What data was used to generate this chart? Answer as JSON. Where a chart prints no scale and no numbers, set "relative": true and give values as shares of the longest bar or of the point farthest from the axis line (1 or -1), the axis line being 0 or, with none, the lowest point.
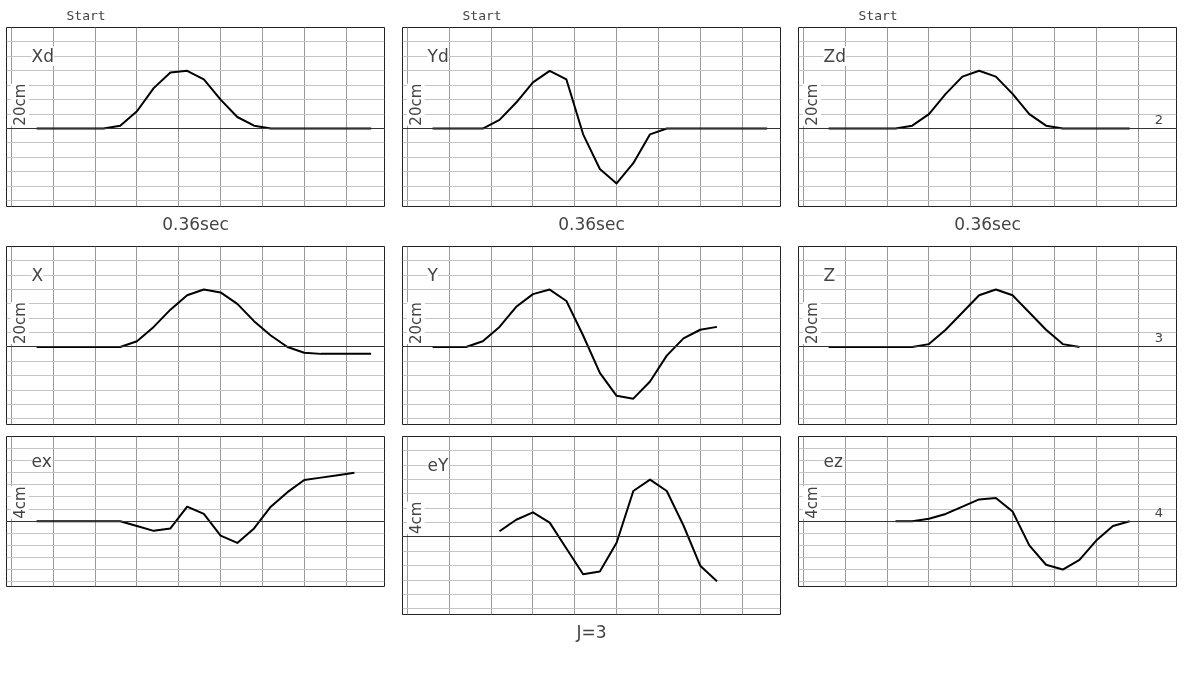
{
  "chart_data": [
    {
      "type": "line",
      "title": "Xd",
      "subtitle": "Start",
      "ylabel": "20cm",
      "xlabel": "0.36sec",
      "relative": true,
      "grid": true,
      "line_style": "solid",
      "categories": [
        null,
        null,
        null,
        null,
        null,
        null,
        null,
        null,
        null,
        null,
        null,
        null,
        null,
        null,
        null,
        null,
        null,
        null,
        null,
        null,
        null
      ],
      "series": [
        {
          "color": "#000000",
          "values": [
            0,
            0,
            0,
            0,
            0,
            0.05,
            0.3,
            0.7,
            0.97,
            1,
            0.85,
            0.5,
            0.2,
            0.05,
            0,
            0,
            0,
            0,
            0,
            0,
            0
          ]
        }
      ]
    },
    {
      "type": "line",
      "title": "Yd",
      "subtitle": "Start",
      "ylabel": "20cm",
      "xlabel": "0.36sec",
      "relative": true,
      "grid": true,
      "line_style": "solid",
      "categories": [
        null,
        null,
        null,
        null,
        null,
        null,
        null,
        null,
        null,
        null,
        null,
        null,
        null,
        null,
        null,
        null,
        null,
        null,
        null,
        null,
        null
      ],
      "series": [
        {
          "color": "#000000",
          "values": [
            0,
            0,
            0,
            0,
            0.15,
            0.45,
            0.8,
            1,
            0.85,
            -0.1,
            -0.7,
            -0.95,
            -0.6,
            -0.1,
            0,
            0,
            0,
            0,
            0,
            0,
            0
          ]
        }
      ]
    },
    {
      "type": "line",
      "title": "Zd",
      "subtitle": "Start",
      "ylabel": "20cm",
      "xlabel": "0.36sec",
      "annotations": [
        "2"
      ],
      "relative": true,
      "grid": true,
      "line_style": "solid",
      "categories": [
        null,
        null,
        null,
        null,
        null,
        null,
        null,
        null,
        null,
        null,
        null,
        null,
        null,
        null,
        null,
        null,
        null,
        null,
        null,
        null,
        null
      ],
      "series": [
        {
          "color": "#000000",
          "values": [
            0,
            0,
            0,
            0,
            0,
            0.05,
            0.25,
            0.6,
            0.9,
            1,
            0.9,
            0.6,
            0.25,
            0.05,
            0,
            0,
            0,
            0,
            0,
            null,
            null
          ]
        }
      ]
    },
    {
      "type": "line",
      "title": "X",
      "ylabel": "20cm",
      "relative": true,
      "grid": true,
      "line_style": "solid",
      "categories": [
        null,
        null,
        null,
        null,
        null,
        null,
        null,
        null,
        null,
        null,
        null,
        null,
        null,
        null,
        null,
        null,
        null,
        null,
        null,
        null,
        null
      ],
      "series": [
        {
          "color": "#000000",
          "values": [
            0,
            0,
            0,
            0,
            0,
            0,
            0.1,
            0.35,
            0.65,
            0.9,
            1,
            0.95,
            0.75,
            0.45,
            0.2,
            0,
            -0.1,
            -0.12,
            -0.12,
            -0.12,
            -0.12
          ]
        }
      ]
    },
    {
      "type": "line",
      "title": "Y",
      "ylabel": "20cm",
      "relative": true,
      "grid": true,
      "line_style": "solid",
      "categories": [
        null,
        null,
        null,
        null,
        null,
        null,
        null,
        null,
        null,
        null,
        null,
        null,
        null,
        null,
        null,
        null,
        null,
        null,
        null,
        null,
        null
      ],
      "series": [
        {
          "color": "#000000",
          "values": [
            0,
            0,
            0,
            0.1,
            0.35,
            0.7,
            0.92,
            1,
            0.8,
            0.2,
            -0.45,
            -0.85,
            -0.9,
            -0.6,
            -0.15,
            0.15,
            0.3,
            0.35,
            null,
            null,
            null
          ]
        }
      ]
    },
    {
      "type": "line",
      "title": "Z",
      "ylabel": "20cm",
      "annotations": [
        "3"
      ],
      "relative": true,
      "grid": true,
      "line_style": "solid",
      "categories": [
        null,
        null,
        null,
        null,
        null,
        null,
        null,
        null,
        null,
        null,
        null,
        null,
        null,
        null,
        null,
        null,
        null,
        null,
        null,
        null,
        null
      ],
      "series": [
        {
          "color": "#000000",
          "values": [
            0,
            0,
            0,
            0,
            0,
            0,
            0.05,
            0.3,
            0.6,
            0.9,
            1,
            0.9,
            0.6,
            0.3,
            0.05,
            0,
            null,
            null,
            null,
            null,
            null
          ]
        }
      ]
    },
    {
      "type": "line",
      "title": "ex",
      "ylabel": "4cm",
      "relative": true,
      "grid": true,
      "line_style": "solid",
      "categories": [
        null,
        null,
        null,
        null,
        null,
        null,
        null,
        null,
        null,
        null,
        null,
        null,
        null,
        null,
        null,
        null,
        null,
        null,
        null,
        null,
        null
      ],
      "series": [
        {
          "color": "#000000",
          "values": [
            0,
            0,
            0,
            0,
            0,
            0,
            -0.1,
            -0.2,
            -0.15,
            0.3,
            0.15,
            -0.3,
            -0.45,
            -0.15,
            0.3,
            0.6,
            0.85,
            0.9,
            0.95,
            1,
            null
          ]
        }
      ]
    },
    {
      "type": "line",
      "title": "eY",
      "ylabel": "4cm",
      "xlabel": "J=3",
      "relative": true,
      "grid": true,
      "line_style": "solid",
      "categories": [
        null,
        null,
        null,
        null,
        null,
        null,
        null,
        null,
        null,
        null,
        null,
        null,
        null,
        null,
        null,
        null,
        null,
        null,
        null,
        null,
        null
      ],
      "series": [
        {
          "color": "#000000",
          "values": [
            null,
            null,
            null,
            null,
            0.1,
            0.3,
            0.43,
            0.25,
            -0.2,
            -0.65,
            -0.6,
            -0.1,
            0.8,
            1,
            0.8,
            0.2,
            -0.5,
            -0.77,
            null,
            null,
            null
          ]
        }
      ]
    },
    {
      "type": "line",
      "title": "ez",
      "ylabel": "4cm",
      "annotations": [
        "4"
      ],
      "relative": true,
      "grid": true,
      "line_style": "solid",
      "categories": [
        null,
        null,
        null,
        null,
        null,
        null,
        null,
        null,
        null,
        null,
        null,
        null,
        null,
        null,
        null,
        null,
        null,
        null,
        null,
        null,
        null
      ],
      "series": [
        {
          "color": "#000000",
          "values": [
            null,
            null,
            null,
            null,
            0,
            0,
            0.05,
            0.15,
            0.3,
            0.45,
            0.48,
            0.2,
            -0.5,
            -0.9,
            -1,
            -0.8,
            -0.4,
            -0.1,
            0,
            null,
            null
          ]
        }
      ]
    }
  ]
}
